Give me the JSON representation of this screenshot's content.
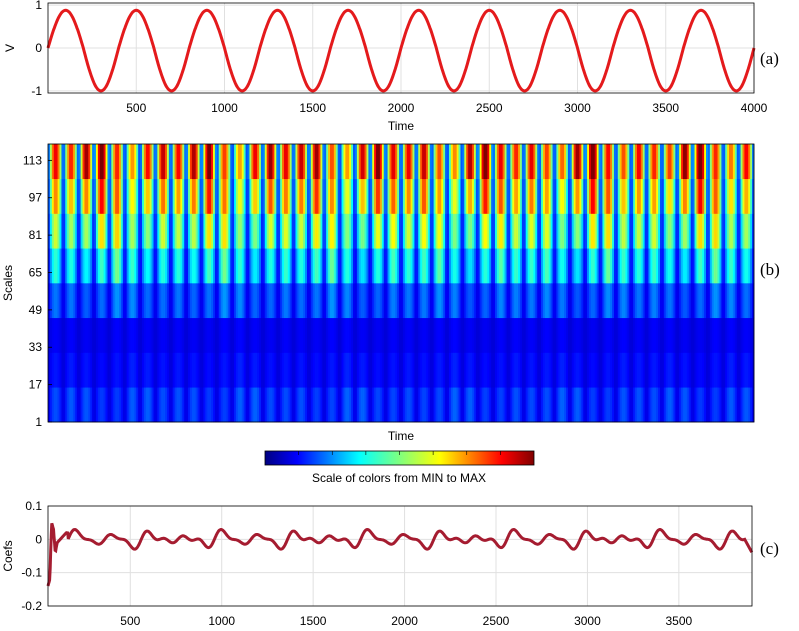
{
  "chart_data": [
    {
      "panel": "(a)",
      "type": "line",
      "ylabel": "V",
      "xlabel": "Time",
      "xlim": [
        0,
        4000
      ],
      "ylim": [
        -1.05,
        1.05
      ],
      "xticks": [
        500,
        1000,
        1500,
        2000,
        2500,
        3000,
        3500,
        4000
      ],
      "yticks": [
        -1,
        0,
        1
      ],
      "grid": true,
      "series": [
        {
          "color": "#e41a1c",
          "period": 400,
          "amplitude_min": 0.88,
          "amplitude_max": 1.0,
          "function": "sinusoid with frequency ~2.5 cycles per 1000 time units",
          "x": [
            0,
            100,
            200,
            300,
            400,
            500,
            600,
            700,
            800,
            900,
            1000
          ],
          "y": [
            0,
            1,
            0,
            -1,
            0,
            1,
            0,
            -1,
            0,
            1,
            0
          ]
        }
      ]
    },
    {
      "panel": "(b)",
      "type": "heatmap",
      "ylabel": "Scales",
      "xlabel": "Time",
      "yticks": [
        1,
        17,
        33,
        49,
        65,
        81,
        97,
        113
      ],
      "yrange": [
        1,
        120
      ],
      "colorbar_label": "Scale of colors from MIN to MAX",
      "colormap": "jet",
      "stripes": 46,
      "band_intensity": [
        0.15,
        0.08,
        0.05,
        0.2,
        0.42,
        0.62,
        0.82,
        1.0
      ]
    },
    {
      "panel": "(c)",
      "type": "line",
      "ylabel": "Coefs",
      "xlim": [
        50,
        3900
      ],
      "ylim": [
        -0.2,
        0.1
      ],
      "xticks": [
        500,
        1000,
        1500,
        2000,
        2500,
        3000,
        3500
      ],
      "yticks": [
        -0.2,
        -0.1,
        0,
        0.1
      ],
      "grid": true,
      "series": [
        {
          "color": "#a51c30",
          "x": [
            50,
            60,
            70,
            80,
            90,
            100,
            150,
            250,
            300,
            450,
            650,
            850,
            1050,
            1250,
            1450,
            1650,
            1850,
            2050,
            2250,
            2450,
            2650,
            2850,
            3050,
            3250,
            3450,
            3650,
            3850,
            3900
          ],
          "y": [
            -0.14,
            -0.12,
            0.05,
            0.03,
            -0.04,
            -0.01,
            0.02,
            0.01,
            -0.03,
            0.04,
            0.02,
            0.04,
            -0.03,
            0.04,
            -0.03,
            0.04,
            -0.03,
            0.04,
            -0.03,
            0.04,
            -0.03,
            0.04,
            -0.03,
            0.04,
            -0.03,
            0.04,
            0.0,
            -0.04
          ]
        }
      ]
    }
  ]
}
